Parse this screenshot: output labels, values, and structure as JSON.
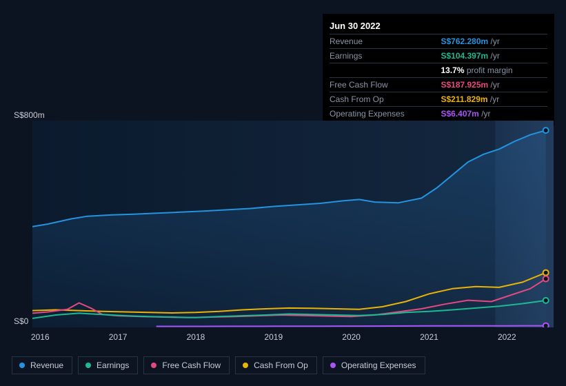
{
  "background_color": "#0d1421",
  "chart": {
    "xlim": [
      2015.9,
      2022.6
    ],
    "ylim": [
      0,
      800
    ],
    "ymax_label": "S$800m",
    "y0_label": "S$0",
    "xticks": [
      2016,
      2017,
      2018,
      2019,
      2020,
      2021,
      2022
    ],
    "xtick_labels": [
      "2016",
      "2017",
      "2018",
      "2019",
      "2020",
      "2021",
      "2022"
    ],
    "plot_bg_gradient": [
      "#0b1a2d",
      "#142840"
    ],
    "highlight_from_x": 2021.85,
    "highlight_gradient": [
      "rgba(60,100,150,0.18)",
      "rgba(60,100,150,0.35)"
    ],
    "cursor_x": 2022.5,
    "line_width": 2,
    "area_series": "revenue",
    "area_fill": "rgba(35,100,160,0.35)",
    "series": {
      "revenue": {
        "label": "Revenue",
        "color": "#2394df",
        "points": [
          [
            2015.9,
            390
          ],
          [
            2016.1,
            400
          ],
          [
            2016.4,
            420
          ],
          [
            2016.6,
            430
          ],
          [
            2016.9,
            435
          ],
          [
            2017.2,
            438
          ],
          [
            2017.5,
            442
          ],
          [
            2017.8,
            446
          ],
          [
            2018.1,
            450
          ],
          [
            2018.4,
            455
          ],
          [
            2018.7,
            460
          ],
          [
            2019.0,
            468
          ],
          [
            2019.3,
            474
          ],
          [
            2019.6,
            480
          ],
          [
            2019.9,
            490
          ],
          [
            2020.1,
            495
          ],
          [
            2020.3,
            485
          ],
          [
            2020.6,
            482
          ],
          [
            2020.9,
            500
          ],
          [
            2021.1,
            540
          ],
          [
            2021.3,
            590
          ],
          [
            2021.5,
            640
          ],
          [
            2021.7,
            670
          ],
          [
            2021.9,
            690
          ],
          [
            2022.1,
            720
          ],
          [
            2022.3,
            745
          ],
          [
            2022.5,
            762.28
          ]
        ]
      },
      "earnings": {
        "label": "Earnings",
        "color": "#1db992",
        "points": [
          [
            2015.9,
            35
          ],
          [
            2016.2,
            48
          ],
          [
            2016.5,
            55
          ],
          [
            2016.8,
            50
          ],
          [
            2017.1,
            45
          ],
          [
            2017.4,
            42
          ],
          [
            2017.7,
            40
          ],
          [
            2018.0,
            38
          ],
          [
            2018.3,
            42
          ],
          [
            2018.6,
            45
          ],
          [
            2018.9,
            48
          ],
          [
            2019.2,
            52
          ],
          [
            2019.5,
            50
          ],
          [
            2019.8,
            48
          ],
          [
            2020.1,
            46
          ],
          [
            2020.4,
            50
          ],
          [
            2020.7,
            58
          ],
          [
            2021.0,
            62
          ],
          [
            2021.3,
            68
          ],
          [
            2021.6,
            75
          ],
          [
            2021.9,
            82
          ],
          [
            2022.2,
            92
          ],
          [
            2022.5,
            104.397
          ]
        ]
      },
      "fcf": {
        "label": "Free Cash Flow",
        "color": "#e64980",
        "points": [
          [
            2015.9,
            55
          ],
          [
            2016.1,
            60
          ],
          [
            2016.35,
            70
          ],
          [
            2016.5,
            95
          ],
          [
            2016.65,
            75
          ],
          [
            2016.8,
            50
          ],
          [
            2017.0,
            45
          ],
          [
            2017.3,
            42
          ],
          [
            2017.6,
            40
          ],
          [
            2017.9,
            38
          ],
          [
            2018.2,
            40
          ],
          [
            2018.5,
            42
          ],
          [
            2018.8,
            45
          ],
          [
            2019.1,
            48
          ],
          [
            2019.4,
            46
          ],
          [
            2019.7,
            44
          ],
          [
            2020.0,
            42
          ],
          [
            2020.3,
            48
          ],
          [
            2020.6,
            60
          ],
          [
            2020.9,
            72
          ],
          [
            2021.2,
            90
          ],
          [
            2021.5,
            105
          ],
          [
            2021.8,
            100
          ],
          [
            2022.0,
            120
          ],
          [
            2022.3,
            150
          ],
          [
            2022.5,
            187.925
          ]
        ]
      },
      "cfo": {
        "label": "Cash From Op",
        "color": "#eab308",
        "points": [
          [
            2015.9,
            65
          ],
          [
            2016.2,
            68
          ],
          [
            2016.5,
            65
          ],
          [
            2016.8,
            62
          ],
          [
            2017.1,
            60
          ],
          [
            2017.4,
            58
          ],
          [
            2017.7,
            56
          ],
          [
            2018.0,
            58
          ],
          [
            2018.3,
            62
          ],
          [
            2018.6,
            68
          ],
          [
            2018.9,
            72
          ],
          [
            2019.2,
            75
          ],
          [
            2019.5,
            74
          ],
          [
            2019.8,
            72
          ],
          [
            2020.1,
            70
          ],
          [
            2020.4,
            80
          ],
          [
            2020.7,
            100
          ],
          [
            2021.0,
            130
          ],
          [
            2021.3,
            150
          ],
          [
            2021.6,
            158
          ],
          [
            2021.9,
            155
          ],
          [
            2022.2,
            175
          ],
          [
            2022.5,
            211.829
          ]
        ]
      },
      "opex": {
        "label": "Operating Expenses",
        "color": "#a855f7",
        "points": [
          [
            2017.5,
            4
          ],
          [
            2017.8,
            4
          ],
          [
            2018.1,
            4
          ],
          [
            2018.4,
            4.2
          ],
          [
            2018.7,
            4.3
          ],
          [
            2019.0,
            4.5
          ],
          [
            2019.3,
            4.6
          ],
          [
            2019.6,
            4.8
          ],
          [
            2019.9,
            5
          ],
          [
            2020.2,
            5.2
          ],
          [
            2020.5,
            5.4
          ],
          [
            2020.8,
            5.6
          ],
          [
            2021.1,
            5.8
          ],
          [
            2021.4,
            6
          ],
          [
            2021.7,
            6.1
          ],
          [
            2022.0,
            6.2
          ],
          [
            2022.3,
            6.3
          ],
          [
            2022.5,
            6.407
          ]
        ]
      }
    },
    "end_markers": [
      {
        "series": "revenue",
        "fill": "#0d1421"
      },
      {
        "series": "cfo",
        "fill": "#0d1421"
      },
      {
        "series": "fcf",
        "fill": "#0d1421"
      },
      {
        "series": "earnings",
        "fill": "#0d1421"
      },
      {
        "series": "opex",
        "fill": "#0d1421"
      }
    ]
  },
  "tooltip": {
    "date": "Jun 30 2022",
    "rows": [
      {
        "label": "Revenue",
        "value": "S$762.280m",
        "suffix": "/yr",
        "color": "#2394df"
      },
      {
        "label": "Earnings",
        "value": "S$104.397m",
        "suffix": "/yr",
        "color": "#1db992"
      },
      {
        "label": "",
        "profit_margin": "13.7%",
        "pm_suffix": "profit margin"
      },
      {
        "label": "Free Cash Flow",
        "value": "S$187.925m",
        "suffix": "/yr",
        "color": "#e64980"
      },
      {
        "label": "Cash From Op",
        "value": "S$211.829m",
        "suffix": "/yr",
        "color": "#eab308"
      },
      {
        "label": "Operating Expenses",
        "value": "S$6.407m",
        "suffix": "/yr",
        "color": "#a855f7"
      }
    ]
  },
  "legend": [
    {
      "label": "Revenue",
      "color": "#2394df",
      "key": "revenue"
    },
    {
      "label": "Earnings",
      "color": "#1db992",
      "key": "earnings"
    },
    {
      "label": "Free Cash Flow",
      "color": "#e64980",
      "key": "fcf"
    },
    {
      "label": "Cash From Op",
      "color": "#eab308",
      "key": "cfo"
    },
    {
      "label": "Operating Expenses",
      "color": "#a855f7",
      "key": "opex"
    }
  ]
}
